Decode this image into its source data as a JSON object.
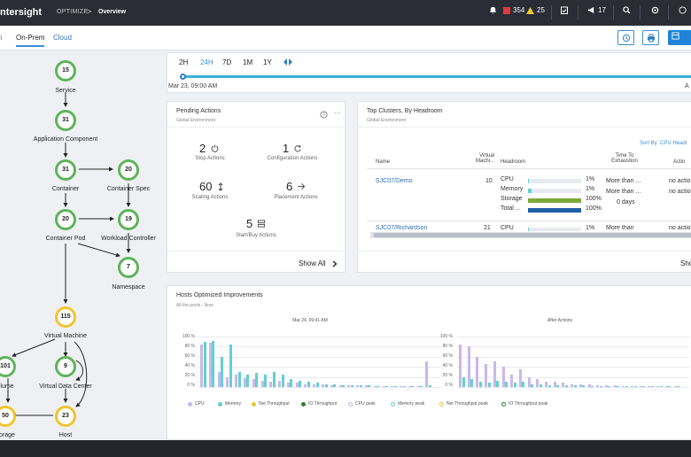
{
  "header": {
    "brand": "ntersight",
    "crumb_parent": "OPTIMIZE",
    "crumb_sep": ">",
    "crumb_current": "Overview",
    "critical_count": "354",
    "warning_count": "25",
    "announce_count": "17"
  },
  "tabs": [
    {
      "label": "n"
    },
    {
      "label": "On-Prem"
    },
    {
      "label": "Cloud"
    }
  ],
  "graph": {
    "nodes": [
      {
        "value": "15",
        "label": "Service"
      },
      {
        "value": "31",
        "label": "Application Component"
      },
      {
        "value": "31",
        "label": "Container"
      },
      {
        "value": "20",
        "label": "Container Spec"
      },
      {
        "value": "20",
        "label": "Container Pod"
      },
      {
        "value": "19",
        "label": "Workload Controller"
      },
      {
        "value": "7",
        "label": "Namespace"
      },
      {
        "value": "115",
        "label": "Virtual Machine"
      },
      {
        "value": "101",
        "label": "lume"
      },
      {
        "value": "9",
        "label": "Virtual Data Center"
      },
      {
        "value": "50",
        "label": "orage"
      },
      {
        "value": "23",
        "label": "Host"
      }
    ]
  },
  "time": {
    "ranges": [
      "2H",
      "24H",
      "7D",
      "1M",
      "1Y"
    ],
    "active": "24H",
    "start": "Mar 23, 09:00 AM",
    "end_partial": "A"
  },
  "pending": {
    "title": "Pending Actions",
    "subtitle": "Global Environment",
    "items": [
      {
        "num": "2",
        "label": "Stop Actions"
      },
      {
        "num": "1",
        "label": "Configuration Actions"
      },
      {
        "num": "60",
        "label": "Scaling Actions"
      },
      {
        "num": "6",
        "label": "Placement Actions"
      },
      {
        "num": "5",
        "label": "Start/Buy Actions"
      }
    ],
    "show_all": "Show All"
  },
  "clusters": {
    "title": "Top Clusters, By Headroom",
    "subtitle": "Global Environment",
    "sort": "Sort By: CPU Headr",
    "headers": {
      "name": "Name",
      "vms": "Virtual Machi...",
      "headroom": "Headroom",
      "tte": "Time To Exhaustion",
      "actions": "Actio"
    },
    "rows": [
      {
        "name": "SJC07/Demo",
        "vms": "10",
        "metrics": [
          {
            "name": "CPU",
            "pct": "1%",
            "fill": 1
          },
          {
            "name": "Memory",
            "pct": "1%",
            "fill": 6
          },
          {
            "name": "Storage",
            "pct": "100%",
            "fill": 100
          },
          {
            "name": "Total ...",
            "pct": "100%",
            "fill": 100
          }
        ],
        "tte": [
          "More than ...",
          "More than ...",
          "0 days"
        ],
        "actions": [
          "no actio",
          "no actio"
        ]
      },
      {
        "name": "SJC07/Richardson",
        "vms": "21",
        "metrics": [
          {
            "name": "CPU",
            "pct": "1%",
            "fill": 1
          }
        ],
        "tte": [
          "More than"
        ],
        "actions": [
          "no actio"
        ]
      }
    ],
    "show_partial": "Sho"
  },
  "improvements": {
    "title": "Hosts Optimized Improvements",
    "subtitle": "All the pools - Now"
  },
  "chart_data": [
    {
      "type": "bar",
      "title": "Mar 24, 09:41 AM",
      "ylim": [
        0,
        100
      ],
      "yticks": [
        "100 %",
        "80 %",
        "60 %",
        "40 %",
        "20 %",
        "0 %"
      ],
      "series": [
        {
          "name": "CPU",
          "values": [
            85,
            88,
            30,
            20,
            25,
            18,
            15,
            12,
            10,
            12,
            8,
            8,
            6,
            6,
            5,
            4,
            4,
            3,
            3,
            3,
            2,
            2,
            2,
            2,
            2,
            2,
            50
          ]
        },
        {
          "name": "Memory",
          "values": [
            90,
            92,
            60,
            85,
            30,
            25,
            28,
            25,
            30,
            25,
            15,
            12,
            10,
            8,
            6,
            5,
            4,
            4,
            3,
            3,
            2,
            2,
            2,
            2,
            2,
            2,
            3
          ]
        }
      ]
    },
    {
      "type": "bar",
      "title": "After Actions",
      "ylim": [
        0,
        100
      ],
      "yticks": [
        "100 %",
        "80 %",
        "60 %",
        "40 %",
        "20 %",
        "0 %"
      ],
      "series": [
        {
          "name": "CPU peak",
          "values": [
            85,
            80,
            60,
            45,
            50,
            40,
            25,
            35,
            20,
            15,
            10,
            10,
            8,
            6,
            5,
            5,
            4,
            3,
            3,
            2,
            2,
            2,
            2,
            2,
            2,
            2
          ]
        },
        {
          "name": "Memory peak",
          "values": [
            20,
            15,
            10,
            8,
            12,
            10,
            8,
            10,
            6,
            5,
            4,
            4,
            3,
            3,
            3,
            2,
            2,
            2,
            2,
            2,
            2,
            2,
            2,
            2,
            2,
            2
          ]
        }
      ]
    }
  ],
  "legend": [
    "CPU",
    "Memory",
    "Net Throughput",
    "IO Throughput",
    "CPU peak",
    "Memory peak",
    "Net Throughput peak",
    "IO Throughput peak"
  ],
  "colors": {
    "accent": "#1f84d8",
    "cpu": "#c9b8e8",
    "memory": "#62d0d4",
    "storage": "#7fa83a",
    "total": "#1f5fa6",
    "green": "#5fb35c",
    "critical": "#e03a3a",
    "warning": "#f0c530"
  }
}
